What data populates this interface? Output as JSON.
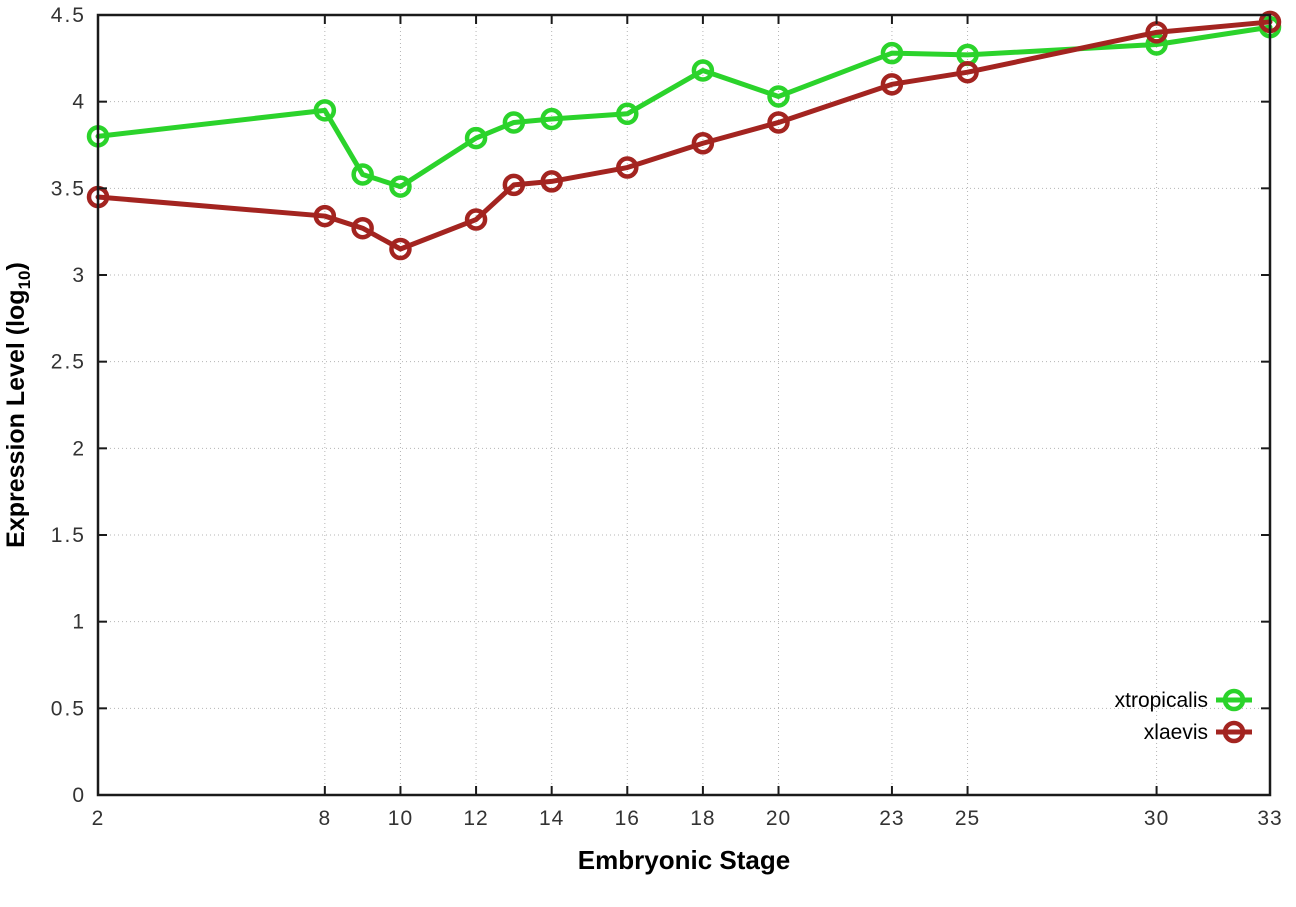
{
  "chart_data": {
    "type": "line",
    "title": "",
    "xlabel": "Embryonic Stage",
    "ylabel": "Expression Level (log10)",
    "ylabel_parts": {
      "base": "Expression Level (log",
      "sub": "10",
      "close": ")"
    },
    "x": [
      2,
      8,
      9,
      10,
      12,
      13,
      14,
      16,
      18,
      20,
      23,
      25,
      30,
      33
    ],
    "xticks": [
      2,
      8,
      10,
      12,
      14,
      16,
      18,
      20,
      23,
      25,
      30,
      33
    ],
    "yticks": [
      0,
      0.5,
      1,
      1.5,
      2,
      2.5,
      3,
      3.5,
      4,
      4.5
    ],
    "ytick_labels": [
      "0",
      "0.5",
      "1",
      "1.5",
      "2",
      "2.5",
      "3",
      "3.5",
      "4",
      "4.5"
    ],
    "xlim": [
      2,
      33
    ],
    "ylim": [
      0,
      4.5
    ],
    "grid": true,
    "legend_position": "inside-bottom-right",
    "series": [
      {
        "name": "xtropicalis",
        "color": "#2bd32b",
        "values": [
          3.8,
          3.95,
          3.58,
          3.51,
          3.79,
          3.88,
          3.9,
          3.93,
          4.18,
          4.03,
          4.28,
          4.27,
          4.33,
          4.43
        ]
      },
      {
        "name": "xlaevis",
        "color": "#a32420",
        "values": [
          3.45,
          3.34,
          3.27,
          3.15,
          3.32,
          3.52,
          3.54,
          3.62,
          3.76,
          3.88,
          4.1,
          4.17,
          4.4,
          4.46
        ]
      }
    ],
    "style": {
      "grid_color": "#b5b5b5",
      "axis_color": "#1a1a1a",
      "tick_label_color": "#333333",
      "background": "#ffffff"
    }
  }
}
